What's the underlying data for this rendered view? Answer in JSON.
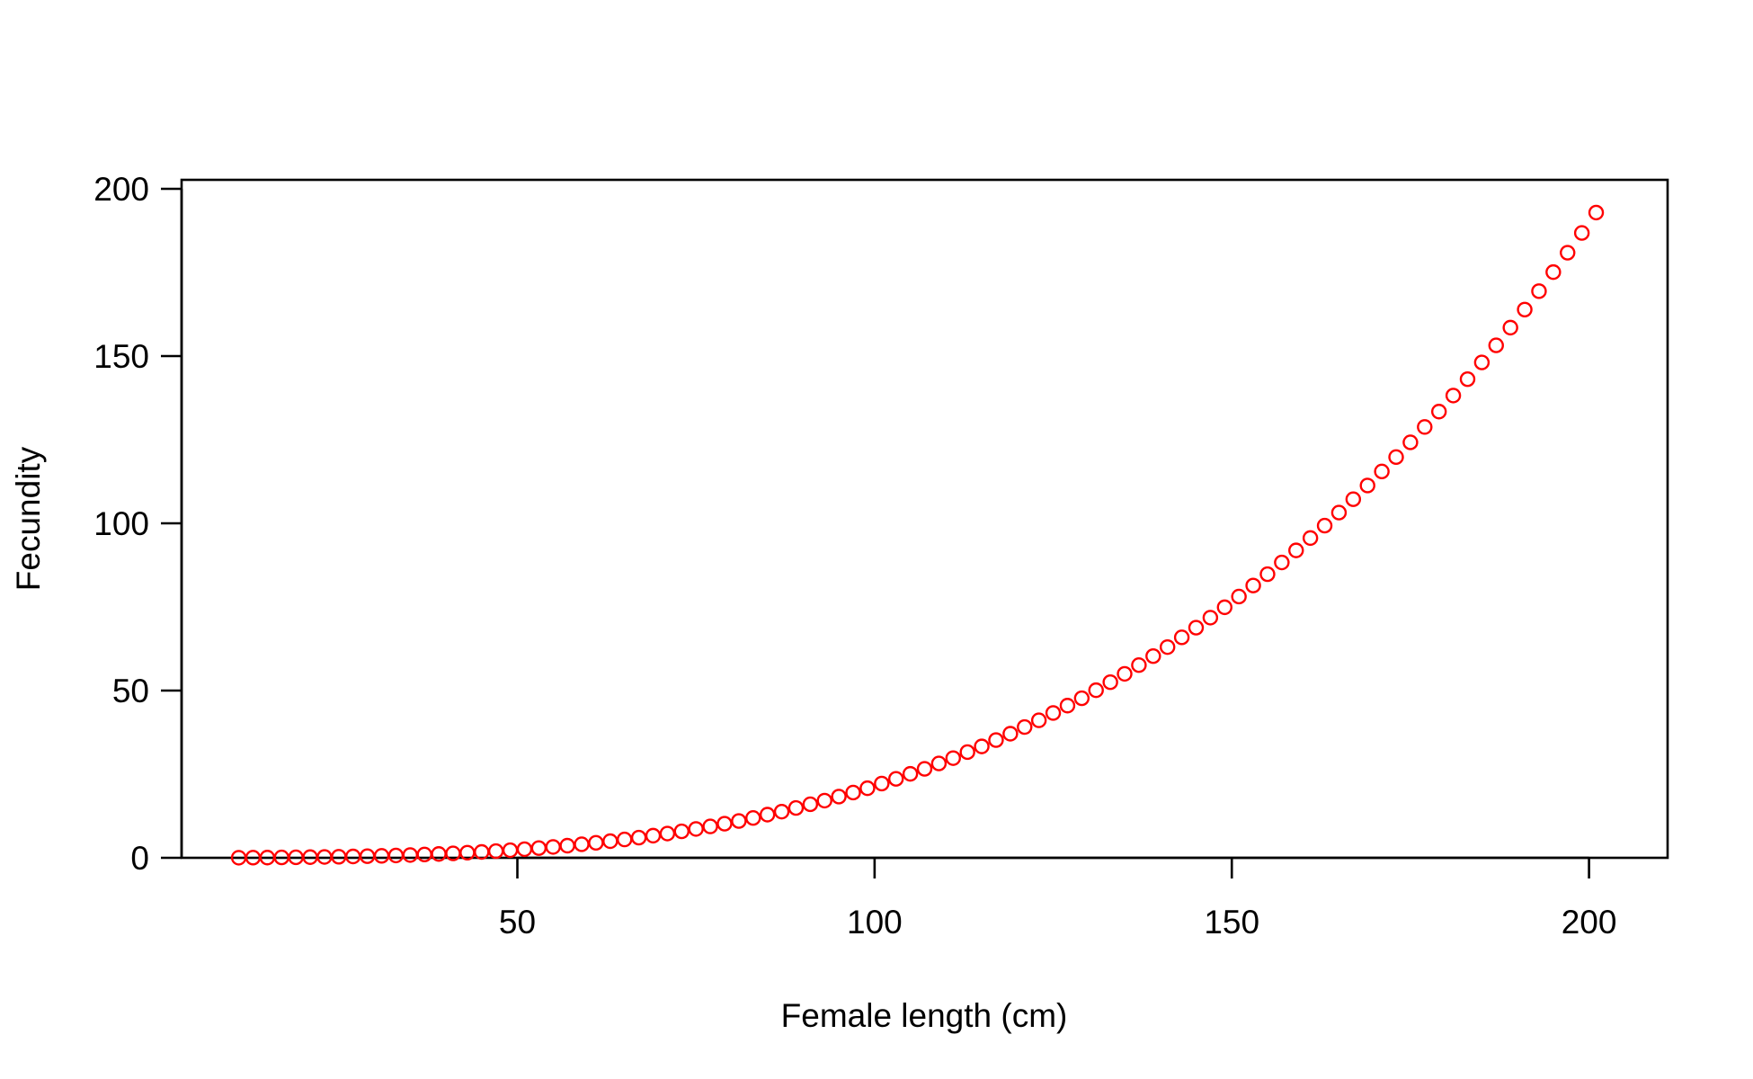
{
  "chart_data": {
    "type": "scatter",
    "xlabel": "Female length (cm)",
    "ylabel": "Fecundity",
    "xlim": [
      3,
      211
    ],
    "ylim": [
      0,
      200
    ],
    "xticks": [
      50,
      100,
      150,
      200
    ],
    "yticks": [
      0,
      50,
      100,
      150,
      200
    ],
    "grid": false,
    "marker": "open-circle",
    "point_color": "#ff0000",
    "x_range": [
      11,
      201
    ],
    "x_step": 2,
    "series": [
      {
        "x": [
          11,
          13,
          15,
          17,
          19,
          21,
          23,
          25,
          27,
          29,
          31,
          33,
          35,
          37,
          39,
          41,
          43,
          45,
          47,
          49,
          51,
          53,
          55,
          57,
          59,
          61,
          63,
          65,
          67,
          69,
          71,
          73,
          75,
          77,
          79,
          81,
          83,
          85,
          87,
          89,
          91,
          93,
          95,
          97,
          99,
          101,
          103,
          105,
          107,
          109,
          111,
          113,
          115,
          117,
          119,
          121,
          123,
          125,
          127,
          129,
          131,
          133,
          135,
          137,
          139,
          141,
          143,
          145,
          147,
          149,
          151,
          153,
          155,
          157,
          159,
          161,
          163,
          165,
          167,
          169,
          171,
          173,
          175,
          177,
          179,
          181,
          183,
          185,
          187,
          189,
          191,
          193,
          195,
          197,
          199,
          201
        ],
        "y": [
          0.03,
          0.05,
          0.07,
          0.11,
          0.15,
          0.2,
          0.26,
          0.32,
          0.4,
          0.48,
          0.58,
          0.7,
          0.83,
          0.98,
          1.14,
          1.32,
          1.53,
          1.75,
          2.0,
          2.28,
          2.58,
          2.9,
          3.25,
          3.63,
          4.04,
          4.49,
          4.97,
          5.48,
          6.03,
          6.62,
          7.25,
          7.92,
          8.63,
          9.38,
          10.2,
          11.0,
          11.9,
          12.9,
          13.8,
          14.9,
          16.0,
          17.1,
          18.3,
          19.5,
          20.8,
          22.2,
          23.6,
          25.1,
          26.6,
          28.2,
          29.8,
          31.6,
          33.3,
          35.2,
          37.1,
          39.1,
          41.1,
          43.3,
          45.5,
          47.7,
          50.1,
          52.5,
          55.0,
          57.6,
          60.3,
          63.0,
          65.9,
          68.8,
          71.8,
          74.9,
          78.1,
          81.4,
          84.8,
          88.3,
          91.9,
          95.6,
          99.3,
          103.2,
          107.2,
          111.3,
          115.5,
          119.8,
          124.2,
          128.8,
          133.4,
          138.2,
          143.1,
          148.1,
          153.2,
          158.5,
          163.9,
          169.4,
          175.1,
          180.9,
          186.8,
          192.9
        ]
      }
    ]
  }
}
